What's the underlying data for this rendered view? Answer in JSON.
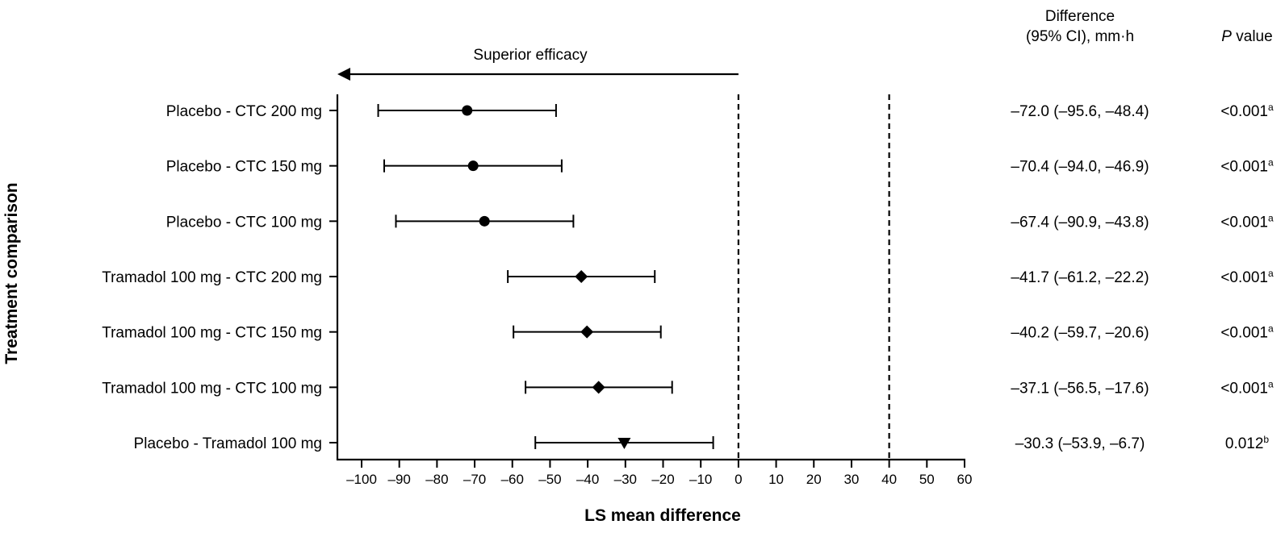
{
  "chart_data": {
    "type": "forest",
    "title": "",
    "xlabel": "LS mean difference",
    "ylabel": "Treatment comparison",
    "xlim": [
      -100,
      60
    ],
    "xticks": [
      -100,
      -90,
      -80,
      -70,
      -60,
      -50,
      -40,
      -30,
      -20,
      -10,
      0,
      10,
      20,
      30,
      40,
      50,
      60
    ],
    "xtick_labels": [
      "–100",
      "–90",
      "–80",
      "–70",
      "–60",
      "–50",
      "–40",
      "–30",
      "–20",
      "–10",
      "0",
      "10",
      "20",
      "30",
      "40",
      "50",
      "60"
    ],
    "reference_lines": [
      0,
      40
    ],
    "annotation": {
      "text": "Superior efficacy",
      "direction": "left",
      "from": 0,
      "to": -100
    },
    "column_headers": {
      "difference_line1": "Difference",
      "difference_line2": "(95% CI), mm·h",
      "p_italic": "P",
      "p_rest": " value"
    },
    "rows": [
      {
        "label": "Placebo - CTC 200 mg",
        "estimate": -72.0,
        "ci_low": -95.6,
        "ci_high": -48.4,
        "marker": "circle",
        "diff_text": "–72.0 (–95.6, –48.4)",
        "p_text": "<0.001",
        "p_sup": "a"
      },
      {
        "label": "Placebo - CTC 150 mg",
        "estimate": -70.4,
        "ci_low": -94.0,
        "ci_high": -46.9,
        "marker": "circle",
        "diff_text": "–70.4 (–94.0, –46.9)",
        "p_text": "<0.001",
        "p_sup": "a"
      },
      {
        "label": "Placebo - CTC 100 mg",
        "estimate": -67.4,
        "ci_low": -90.9,
        "ci_high": -43.8,
        "marker": "circle",
        "diff_text": "–67.4 (–90.9, –43.8)",
        "p_text": "<0.001",
        "p_sup": "a"
      },
      {
        "label": "Tramadol 100 mg - CTC 200 mg",
        "estimate": -41.7,
        "ci_low": -61.2,
        "ci_high": -22.2,
        "marker": "diamond",
        "diff_text": "–41.7 (–61.2, –22.2)",
        "p_text": "<0.001",
        "p_sup": "a"
      },
      {
        "label": "Tramadol 100 mg - CTC 150 mg",
        "estimate": -40.2,
        "ci_low": -59.7,
        "ci_high": -20.6,
        "marker": "diamond",
        "diff_text": "–40.2 (–59.7, –20.6)",
        "p_text": "<0.001",
        "p_sup": "a"
      },
      {
        "label": "Tramadol 100 mg - CTC 100 mg",
        "estimate": -37.1,
        "ci_low": -56.5,
        "ci_high": -17.6,
        "marker": "diamond",
        "diff_text": "–37.1 (–56.5, –17.6)",
        "p_text": "<0.001",
        "p_sup": "a"
      },
      {
        "label": "Placebo - Tramadol 100 mg",
        "estimate": -30.3,
        "ci_low": -53.9,
        "ci_high": -6.7,
        "marker": "triangle-down",
        "diff_text": "–30.3 (–53.9, –6.7)",
        "p_text": "0.012",
        "p_sup": "b"
      }
    ],
    "colors": {
      "ink": "#000000",
      "background": "#ffffff"
    }
  }
}
